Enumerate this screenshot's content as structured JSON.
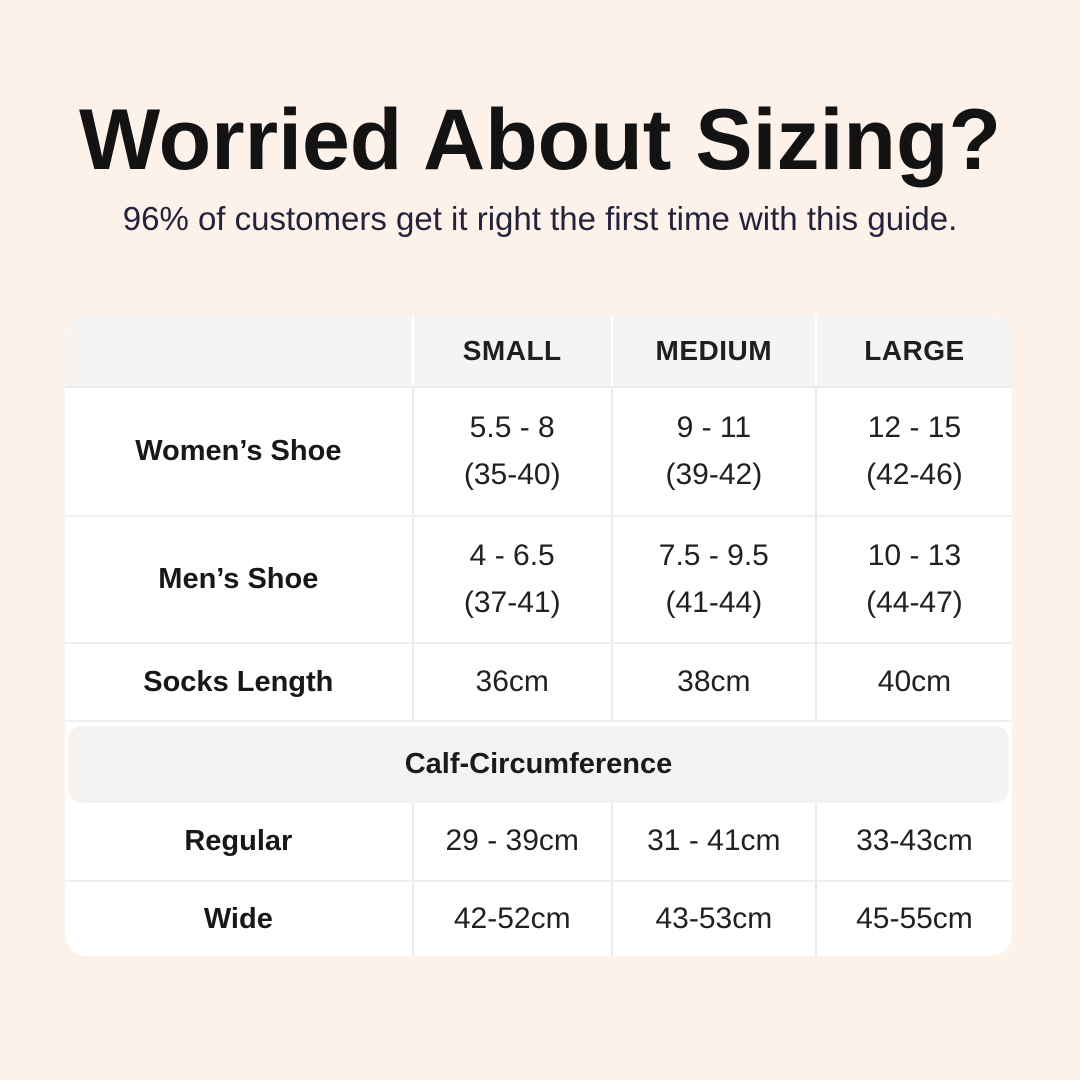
{
  "header": {
    "title": "Worried About Sizing?",
    "subtitle": "96% of customers get it right the first time with this guide."
  },
  "table": {
    "columns": [
      "SMALL",
      "MEDIUM",
      "LARGE"
    ],
    "rows": [
      {
        "label": "Women’s Shoe",
        "cells": [
          {
            "line1": "5.5 - 8",
            "line2": "(35-40)"
          },
          {
            "line1": "9 - 11",
            "line2": "(39-42)"
          },
          {
            "line1": "12 - 15",
            "line2": "(42-46)"
          }
        ]
      },
      {
        "label": "Men’s Shoe",
        "cells": [
          {
            "line1": "4 - 6.5",
            "line2": "(37-41)"
          },
          {
            "line1": "7.5 - 9.5",
            "line2": "(41-44)"
          },
          {
            "line1": "10 - 13",
            "line2": "(44-47)"
          }
        ]
      },
      {
        "label": "Socks Length",
        "cells": [
          {
            "line1": "36cm"
          },
          {
            "line1": "38cm"
          },
          {
            "line1": "40cm"
          }
        ]
      }
    ],
    "section_header": "Calf-Circumference",
    "section_rows": [
      {
        "label": "Regular",
        "cells": [
          {
            "line1": "29 - 39cm"
          },
          {
            "line1": "31 - 41cm"
          },
          {
            "line1": "33-43cm"
          }
        ]
      },
      {
        "label": "Wide",
        "cells": [
          {
            "line1": "42-52cm"
          },
          {
            "line1": "43-53cm"
          },
          {
            "line1": "45-55cm"
          }
        ]
      }
    ]
  },
  "colors": {
    "background": "#fdf2ea",
    "card": "#ffffff",
    "band_gray": "#f5f4f3",
    "divider": "#eaeaea",
    "title_text": "#131313",
    "subtitle_text": "#23233c",
    "table_text": "#1b1b1b"
  },
  "chart_data": {
    "type": "table",
    "title": "Worried About Sizing?",
    "subtitle": "96% of customers get it right the first time with this guide.",
    "columns": [
      "",
      "SMALL",
      "MEDIUM",
      "LARGE"
    ],
    "rows": [
      [
        "Women’s Shoe",
        "5.5 - 8 (35-40)",
        "9 - 11 (39-42)",
        "12 - 15 (42-46)"
      ],
      [
        "Men’s Shoe",
        "4 - 6.5 (37-41)",
        "7.5 - 9.5 (41-44)",
        "10 - 13 (44-47)"
      ],
      [
        "Socks Length",
        "36cm",
        "38cm",
        "40cm"
      ],
      [
        "Calf-Circumference",
        "",
        "",
        ""
      ],
      [
        "Regular",
        "29 - 39cm",
        "31 - 41cm",
        "33-43cm"
      ],
      [
        "Wide",
        "42-52cm",
        "43-53cm",
        "45-55cm"
      ]
    ]
  }
}
